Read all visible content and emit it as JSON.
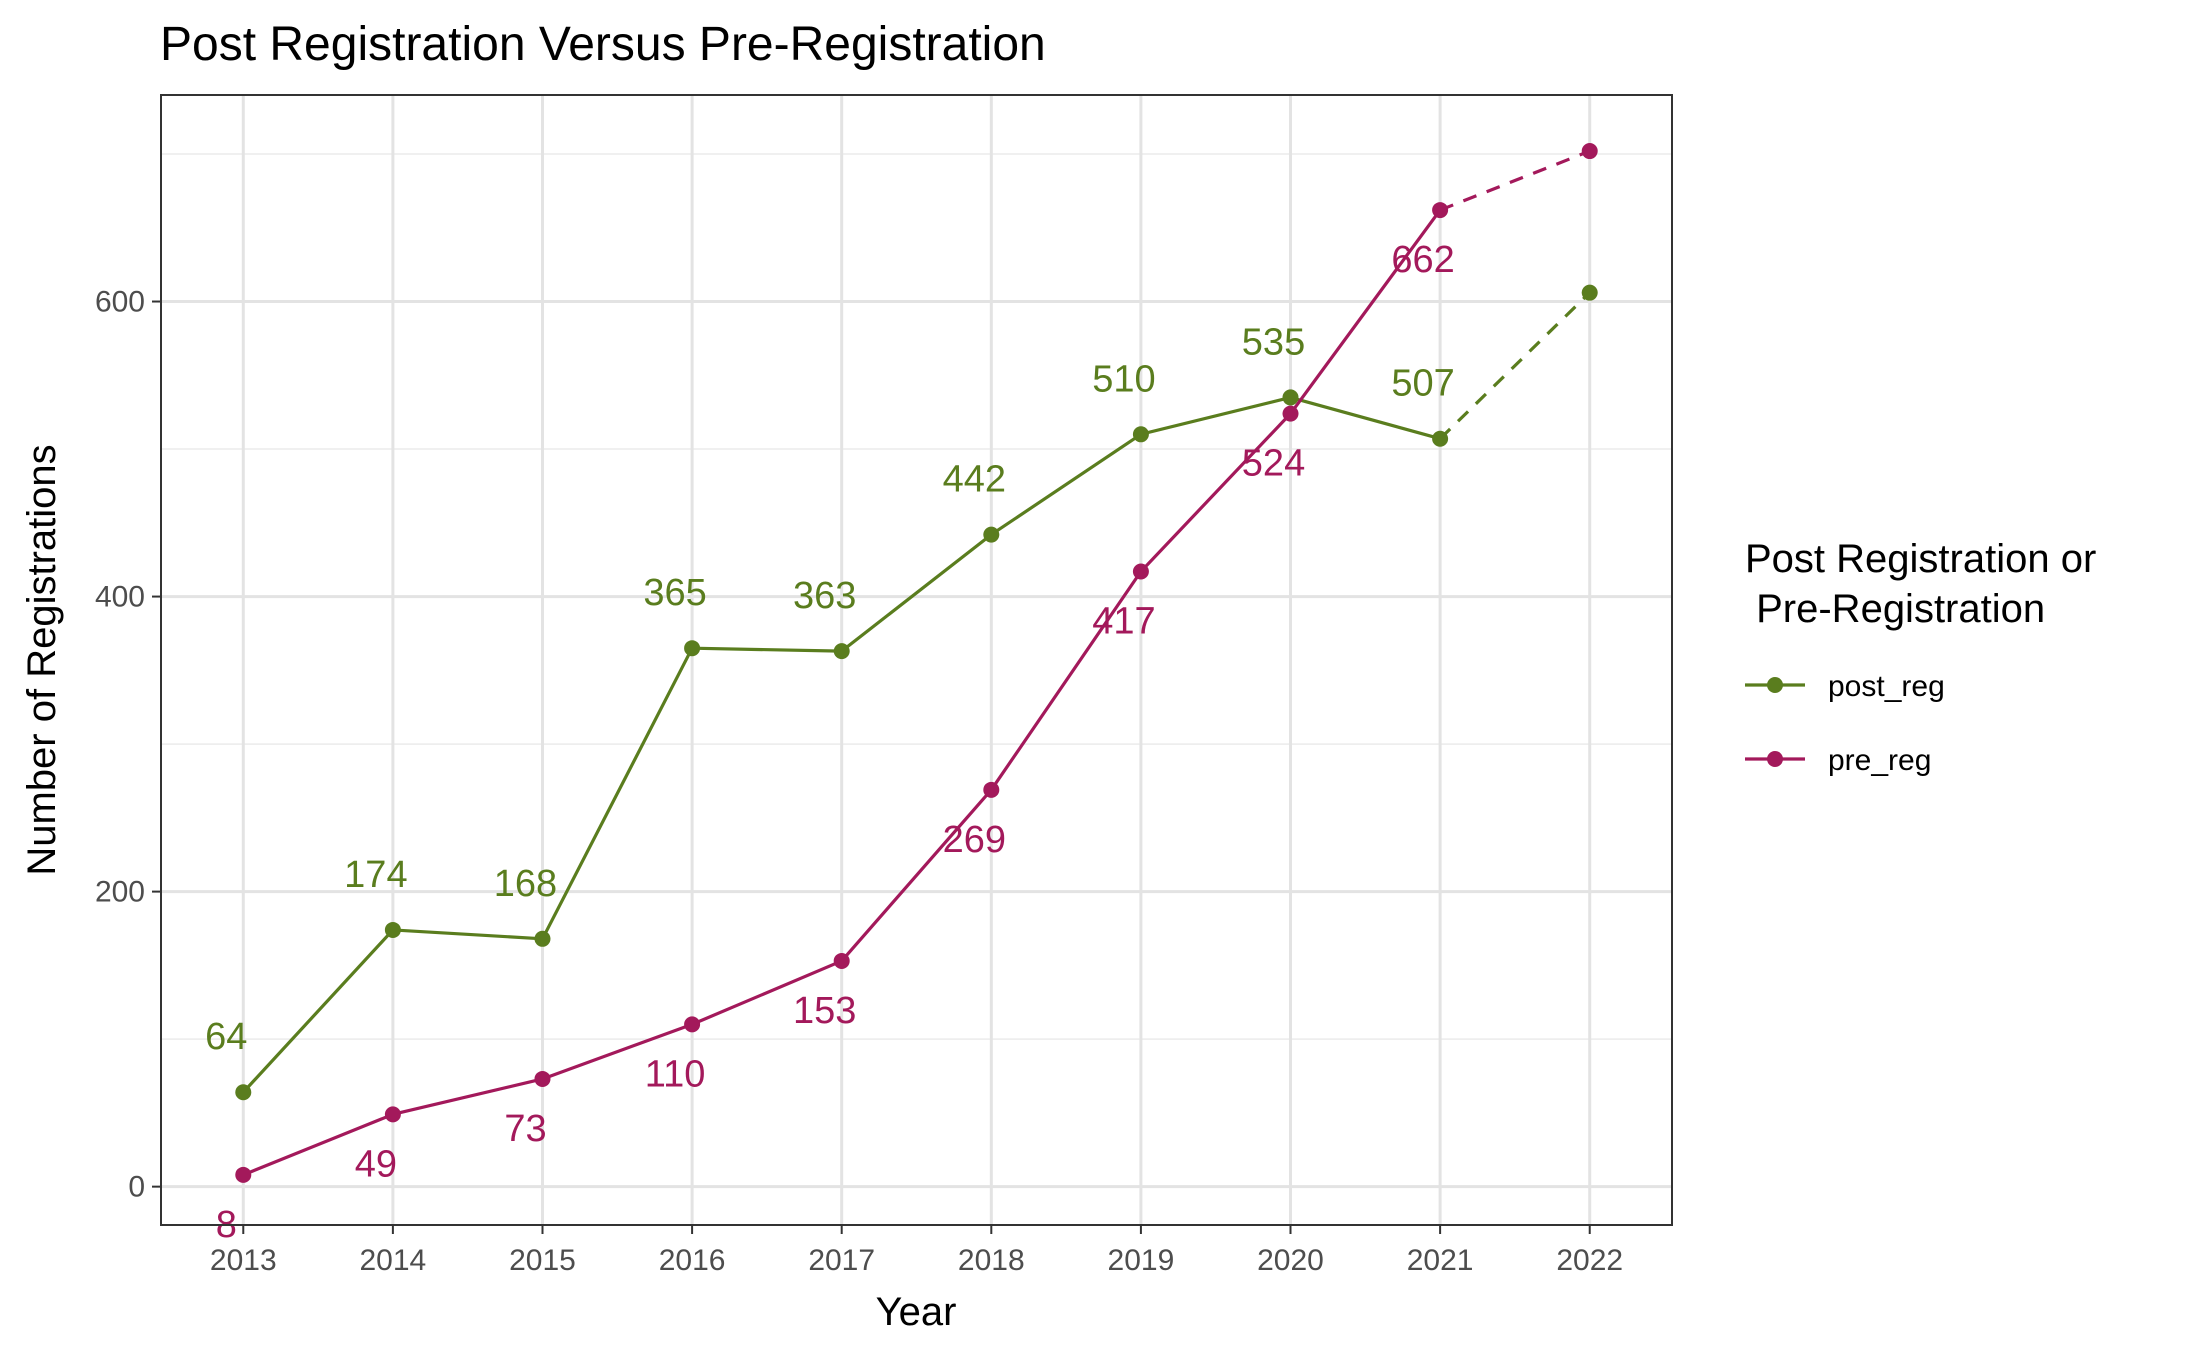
{
  "chart_data": {
    "type": "line",
    "title": "Post Registration Versus Pre-Registration",
    "xlabel": "Year",
    "ylabel": "Number of Registrations",
    "x": [
      2013,
      2014,
      2015,
      2016,
      2017,
      2018,
      2019,
      2020,
      2021,
      2022
    ],
    "xlim": [
      2012.45,
      2022.55
    ],
    "ylim": [
      -26,
      740
    ],
    "yticks": [
      0,
      200,
      400,
      600
    ],
    "grid": true,
    "legend": {
      "title_line1": "Post Registration or",
      "title_line2": " Pre-Registration",
      "placement": "right"
    },
    "series": [
      {
        "name": "post_reg",
        "color": "#5a7d1e",
        "values": [
          64,
          174,
          168,
          365,
          363,
          442,
          510,
          535,
          507,
          606
        ],
        "labels": [
          "64",
          "174",
          "168",
          "365",
          "363",
          "442",
          "510",
          "535",
          "507",
          ""
        ],
        "label_position": "above",
        "dashed_from_index": 8
      },
      {
        "name": "pre_reg",
        "color": "#a3195b",
        "values": [
          8,
          49,
          73,
          110,
          153,
          269,
          417,
          524,
          662,
          702
        ],
        "labels": [
          "8",
          "49",
          "73",
          "110",
          "153",
          "269",
          "417",
          "524",
          "662",
          ""
        ],
        "label_position": "below",
        "dashed_from_index": 8
      }
    ]
  }
}
